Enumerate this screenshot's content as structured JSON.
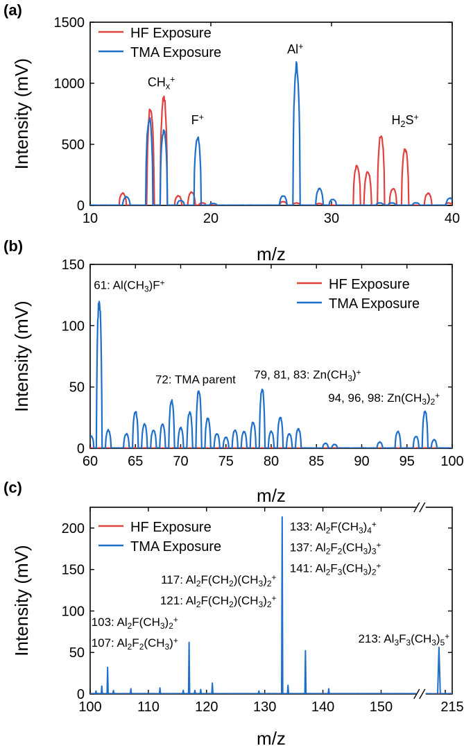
{
  "colors": {
    "hf": "#e0403e",
    "tma": "#1f6fc8"
  },
  "legend": {
    "hf": "HF Exposure",
    "tma": "TMA Exposure"
  },
  "chart_data": [
    {
      "panel_label": "(a)",
      "type": "line",
      "xlabel": "m/z",
      "ylabel": "Intensity (mV)",
      "xlim": [
        10,
        40
      ],
      "ylim": [
        0,
        1500
      ],
      "xticks": [
        10,
        20,
        30,
        40
      ],
      "yticks": [
        0,
        500,
        1000,
        1500
      ],
      "legend_position": "top-left",
      "series": [
        {
          "name": "HF Exposure",
          "color_key": "hf",
          "peaks": [
            [
              12.7,
              100
            ],
            [
              15.0,
              830
            ],
            [
              16.1,
              910
            ],
            [
              17.3,
              80
            ],
            [
              18.4,
              110
            ],
            [
              19.3,
              20
            ],
            [
              26.0,
              30
            ],
            [
              27.1,
              20
            ],
            [
              29.0,
              15
            ],
            [
              32.1,
              330
            ],
            [
              33.0,
              285
            ],
            [
              34.1,
              590
            ],
            [
              35.1,
              140
            ],
            [
              36.1,
              470
            ],
            [
              38.0,
              100
            ],
            [
              39.7,
              20
            ]
          ]
        },
        {
          "name": "TMA Exposure",
          "color_key": "tma",
          "peaks": [
            [
              13.0,
              70
            ],
            [
              14.9,
              730
            ],
            [
              16.1,
              630
            ],
            [
              17.5,
              40
            ],
            [
              18.9,
              570
            ],
            [
              20.2,
              15
            ],
            [
              26.0,
              80
            ],
            [
              27.1,
              1180
            ],
            [
              29.0,
              140
            ],
            [
              30.1,
              50
            ],
            [
              34.0,
              20
            ],
            [
              35.0,
              20
            ],
            [
              37.0,
              20
            ],
            [
              39.8,
              60
            ]
          ]
        }
      ],
      "annotations": [
        {
          "base": "CH",
          "sub": "x",
          "sup": "+",
          "x": 15.9,
          "y": 975
        },
        {
          "base": "F",
          "sub": "",
          "sup": "+",
          "x": 18.9,
          "y": 665
        },
        {
          "base": "Al",
          "sub": "",
          "sup": "+",
          "x": 27.0,
          "y": 1245
        },
        {
          "base": "H",
          "sub": "2",
          "sup": "",
          "tail": "S",
          "sup2": "+",
          "x": 36.1,
          "y": 665
        }
      ]
    },
    {
      "panel_label": "(b)",
      "type": "line",
      "xlabel": "m/z",
      "ylabel": "Intensity (mV)",
      "xlim": [
        60,
        100
      ],
      "ylim": [
        0,
        150
      ],
      "xticks": [
        60,
        65,
        70,
        75,
        80,
        85,
        90,
        95,
        100
      ],
      "yticks": [
        0,
        50,
        100,
        150
      ],
      "legend_position": "top-right",
      "series": [
        {
          "name": "HF Exposure",
          "color_key": "hf",
          "peaks": []
        },
        {
          "name": "TMA Exposure",
          "color_key": "tma",
          "peaks": [
            [
              60.1,
              10
            ],
            [
              61.0,
              124
            ],
            [
              62.0,
              15
            ],
            [
              64.0,
              12
            ],
            [
              65.0,
              31
            ],
            [
              66.0,
              20
            ],
            [
              67.0,
              15
            ],
            [
              68.0,
              20
            ],
            [
              69.0,
              40
            ],
            [
              70.0,
              17
            ],
            [
              71.0,
              30
            ],
            [
              72.0,
              48
            ],
            [
              73.0,
              25
            ],
            [
              74.0,
              12
            ],
            [
              75.0,
              9
            ],
            [
              76.0,
              15
            ],
            [
              77.0,
              14
            ],
            [
              78.0,
              22
            ],
            [
              79.0,
              50
            ],
            [
              80.0,
              14
            ],
            [
              81.0,
              26
            ],
            [
              82.0,
              12
            ],
            [
              83.0,
              16
            ],
            [
              86.0,
              4
            ],
            [
              87.0,
              3
            ],
            [
              92.0,
              5
            ],
            [
              94.0,
              14
            ],
            [
              96.0,
              10
            ],
            [
              97.0,
              31
            ],
            [
              98.0,
              7
            ]
          ]
        }
      ],
      "annotations": [
        {
          "text": "61: Al(CH",
          "sub": "3",
          "tail": ")F",
          "sup": "+",
          "anchor": "start",
          "x": 60.4,
          "y": 130
        },
        {
          "text": "72: TMA parent",
          "anchor": "start",
          "x": 67.2,
          "y": 53
        },
        {
          "text": "79, 81, 83: Zn(CH",
          "sub": "3",
          "tail": ")",
          "sup": "+",
          "anchor": "start",
          "x": 78.1,
          "y": 57
        },
        {
          "text": "94, 96, 98: Zn(CH",
          "sub": "3",
          "tail": ")",
          "sub2": "2",
          "sup": "+",
          "anchor": "start",
          "x": 86.3,
          "y": 38
        }
      ]
    },
    {
      "panel_label": "(c)",
      "type": "line",
      "xlabel": "m/z",
      "ylabel": "Intensity (mV)",
      "xlim": [
        100,
        156
      ],
      "x_break_after": 156,
      "x_after_break": [
        213,
        215
      ],
      "ylim": [
        0,
        225
      ],
      "xticks": [
        100,
        110,
        120,
        130,
        140,
        150
      ],
      "xtick_after_break": "215",
      "yticks": [
        0,
        50,
        100,
        150,
        200
      ],
      "legend_position": "top-left",
      "series": [
        {
          "name": "HF Exposure",
          "color_key": "hf",
          "peaks": []
        },
        {
          "name": "TMA Exposure",
          "color_key": "tma",
          "peaks": [
            [
              101,
              3
            ],
            [
              102,
              9
            ],
            [
              103,
              32
            ],
            [
              104,
              4
            ],
            [
              107,
              6
            ],
            [
              112,
              7
            ],
            [
              116,
              4
            ],
            [
              117,
              62
            ],
            [
              118,
              4
            ],
            [
              119,
              5
            ],
            [
              121,
              13
            ],
            [
              129,
              3
            ],
            [
              133,
              213
            ],
            [
              134,
              10
            ],
            [
              137,
              52
            ],
            [
              141,
              6
            ],
            [
              214,
              56
            ]
          ]
        }
      ],
      "annotations": [
        {
          "text": "133: Al",
          "sub": "2",
          "tail": "F(CH",
          "sub2": "3",
          "tail2": ")",
          "sub3": "4",
          "sup": "+",
          "anchor": "start",
          "x": 134.3,
          "y": 197
        },
        {
          "text": "137: Al",
          "sub": "2",
          "tail": "F",
          "sub2": "2",
          "tail2": "(CH",
          "sub3": "3",
          "tail3": ")",
          "sub4": "3",
          "sup": "+",
          "anchor": "start",
          "x": 134.3,
          "y": 172
        },
        {
          "text": "141: Al",
          "sub": "2",
          "tail": "F",
          "sub2": "3",
          "tail2": "(CH",
          "sub3": "3",
          "tail3": ")",
          "sub4": "2",
          "sup": "+",
          "anchor": "start",
          "x": 134.3,
          "y": 147
        },
        {
          "text": "117: Al",
          "sub": "2",
          "tail": "F(CH",
          "sub2": "2",
          "tail2": ")(CH",
          "sub3": "3",
          "tail3": ")",
          "sub4": "2",
          "sup": "+",
          "anchor": "end",
          "x": 132.0,
          "y": 133
        },
        {
          "text": "121: Al",
          "sub": "2",
          "tail": "F(CH",
          "sub2": "2",
          "tail2": ")(CH",
          "sub3": "3",
          "tail3": ")",
          "sub4": "2",
          "sup": "+",
          "anchor": "end",
          "x": 132.0,
          "y": 108
        },
        {
          "text": "103: Al",
          "sub": "2",
          "tail": "F(CH",
          "sub2": "3",
          "tail2": ")",
          "sub3": "2",
          "sup": "+",
          "anchor": "start",
          "x": 100.2,
          "y": 82
        },
        {
          "text": "107: Al",
          "sub": "2",
          "tail": "F",
          "sub2": "2",
          "tail2": "(CH",
          "sub3": "3",
          "tail3": ")",
          "sup": "+",
          "anchor": "start",
          "x": 100.2,
          "y": 57
        },
        {
          "text": "213: Al",
          "sub": "3",
          "tail": "F",
          "sub2": "3",
          "tail2": "(CH",
          "sub3": "3",
          "tail3": ")",
          "sub4": "5",
          "sup": "+",
          "anchor": "end",
          "x": 214.8,
          "y": 62
        }
      ]
    }
  ]
}
